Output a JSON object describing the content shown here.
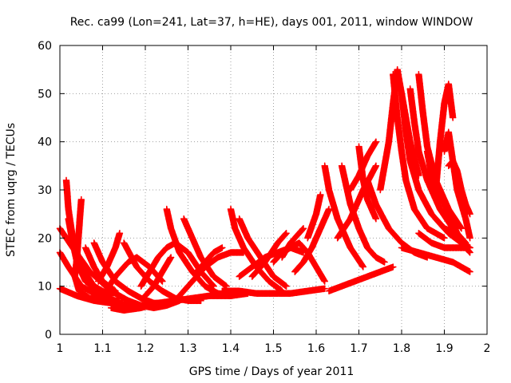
{
  "chart_data": {
    "type": "scatter",
    "title": "Rec. ca99 (Lon=241, Lat=37, h=HE), days 001, 2011, window WINDOW",
    "xlabel": "GPS time / Days of year 2011",
    "ylabel": "STEC from uqrg / TECUs",
    "xlim": [
      1,
      2
    ],
    "ylim": [
      0,
      60
    ],
    "xticks": [
      "1",
      "1.1",
      "1.2",
      "1.3",
      "1.4",
      "1.5",
      "1.6",
      "1.7",
      "1.8",
      "1.9",
      "2"
    ],
    "yticks": [
      "0",
      "10",
      "20",
      "30",
      "40",
      "50",
      "60"
    ],
    "grid": true,
    "marker": "plus",
    "color": "#ff0000",
    "series": [
      {
        "x": [
          1.0,
          1.03,
          1.07,
          1.12,
          1.16
        ],
        "y": [
          22,
          18,
          13,
          9,
          7
        ]
      },
      {
        "x": [
          1.0,
          1.02,
          1.05,
          1.09,
          1.13
        ],
        "y": [
          17,
          14,
          10,
          8,
          7
        ]
      },
      {
        "x": [
          1.0,
          1.04,
          1.08,
          1.12,
          1.17,
          1.21,
          1.25
        ],
        "y": [
          9.5,
          8,
          7,
          6.5,
          6,
          6,
          6.5
        ]
      },
      {
        "x": [
          1.015,
          1.02,
          1.03,
          1.05,
          1.08,
          1.12
        ],
        "y": [
          32,
          26,
          20,
          14,
          10,
          8
        ]
      },
      {
        "x": [
          1.05,
          1.045,
          1.04,
          1.035,
          1.045,
          1.07,
          1.1,
          1.14
        ],
        "y": [
          28,
          22,
          16,
          12,
          9,
          7.5,
          7,
          7
        ]
      },
      {
        "x": [
          1.02,
          1.03,
          1.04,
          1.06,
          1.09,
          1.12
        ],
        "y": [
          24,
          19,
          15,
          11,
          9,
          7.5
        ]
      },
      {
        "x": [
          1.08,
          1.1,
          1.13,
          1.16,
          1.19,
          1.22,
          1.25
        ],
        "y": [
          19,
          15,
          11,
          9,
          7.5,
          6.5,
          6.5
        ]
      },
      {
        "x": [
          1.06,
          1.08,
          1.1,
          1.13
        ],
        "y": [
          18,
          14,
          11,
          9
        ]
      },
      {
        "x": [
          1.1,
          1.13,
          1.16,
          1.18,
          1.21,
          1.24
        ],
        "y": [
          8,
          12,
          15,
          16,
          14,
          11
        ]
      },
      {
        "x": [
          1.09,
          1.11,
          1.13,
          1.14
        ],
        "y": [
          11,
          14,
          18,
          21
        ]
      },
      {
        "x": [
          1.15,
          1.18,
          1.21,
          1.24,
          1.27,
          1.3,
          1.33
        ],
        "y": [
          19,
          14,
          11,
          9,
          7.5,
          7,
          7
        ]
      },
      {
        "x": [
          1.12,
          1.15,
          1.19,
          1.23
        ],
        "y": [
          5.5,
          5,
          5.5,
          6.5
        ]
      },
      {
        "x": [
          1.16,
          1.19,
          1.22,
          1.25,
          1.28
        ],
        "y": [
          7,
          6,
          5.5,
          6,
          7
        ]
      },
      {
        "x": [
          1.19,
          1.21,
          1.23,
          1.25,
          1.27,
          1.3,
          1.33,
          1.36
        ],
        "y": [
          10,
          13,
          16,
          18,
          19,
          17,
          13,
          10
        ]
      },
      {
        "x": [
          1.2,
          1.22,
          1.24,
          1.26
        ],
        "y": [
          8,
          10,
          13,
          16
        ]
      },
      {
        "x": [
          1.25,
          1.26,
          1.28,
          1.31,
          1.34,
          1.37,
          1.4
        ],
        "y": [
          26,
          22,
          17,
          13,
          10,
          8.5,
          8
        ]
      },
      {
        "x": [
          1.29,
          1.31,
          1.33,
          1.36,
          1.39
        ],
        "y": [
          24,
          20,
          16,
          12,
          10
        ]
      },
      {
        "x": [
          1.23,
          1.27,
          1.31,
          1.35,
          1.4,
          1.44
        ],
        "y": [
          6.5,
          7,
          7.5,
          8,
          8,
          8.5
        ]
      },
      {
        "x": [
          1.28,
          1.31,
          1.34,
          1.37,
          1.4,
          1.43
        ],
        "y": [
          8,
          11,
          14,
          16,
          17,
          17
        ]
      },
      {
        "x": [
          1.32,
          1.34,
          1.36,
          1.38
        ],
        "y": [
          13,
          15,
          17,
          18
        ]
      },
      {
        "x": [
          1.4,
          1.41,
          1.43,
          1.46,
          1.49,
          1.52
        ],
        "y": [
          26,
          22,
          18,
          14,
          11,
          9
        ]
      },
      {
        "x": [
          1.42,
          1.44,
          1.47,
          1.5,
          1.53
        ],
        "y": [
          24,
          20,
          16,
          12,
          10
        ]
      },
      {
        "x": [
          1.45,
          1.48,
          1.51,
          1.53
        ],
        "y": [
          12,
          15,
          19,
          21
        ]
      },
      {
        "x": [
          1.38,
          1.42,
          1.46,
          1.5,
          1.54,
          1.58,
          1.62
        ],
        "y": [
          9,
          9,
          8.5,
          8.5,
          8.5,
          9,
          9.5
        ]
      },
      {
        "x": [
          1.42,
          1.45,
          1.48,
          1.51,
          1.54,
          1.57
        ],
        "y": [
          12,
          14,
          16,
          17,
          18,
          17
        ]
      },
      {
        "x": [
          1.5,
          1.52,
          1.54,
          1.56,
          1.58,
          1.6,
          1.62
        ],
        "y": [
          15,
          17,
          18,
          19,
          17,
          14,
          11
        ]
      },
      {
        "x": [
          1.52,
          1.54,
          1.56,
          1.57
        ],
        "y": [
          16,
          19,
          21,
          22
        ]
      },
      {
        "x": [
          1.55,
          1.57,
          1.59,
          1.61,
          1.63
        ],
        "y": [
          13,
          15,
          18,
          22,
          26
        ]
      },
      {
        "x": [
          1.58,
          1.6,
          1.61
        ],
        "y": [
          20,
          25,
          29
        ]
      },
      {
        "x": [
          1.62,
          1.63,
          1.65,
          1.68,
          1.71
        ],
        "y": [
          35,
          30,
          24,
          18,
          14
        ]
      },
      {
        "x": [
          1.63,
          1.66,
          1.69,
          1.72,
          1.75,
          1.78
        ],
        "y": [
          9,
          10,
          11,
          12,
          13,
          14
        ]
      },
      {
        "x": [
          1.65,
          1.68,
          1.71,
          1.74
        ],
        "y": [
          20,
          24,
          30,
          35
        ]
      },
      {
        "x": [
          1.66,
          1.67,
          1.68,
          1.7,
          1.72,
          1.74,
          1.76
        ],
        "y": [
          35,
          31,
          27,
          22,
          18,
          16,
          15
        ]
      },
      {
        "x": [
          1.68,
          1.7,
          1.72,
          1.74
        ],
        "y": [
          30,
          33,
          37,
          40
        ]
      },
      {
        "x": [
          1.7,
          1.71,
          1.72,
          1.74
        ],
        "y": [
          39,
          32,
          28,
          24
        ]
      },
      {
        "x": [
          1.72,
          1.74,
          1.77,
          1.8,
          1.83,
          1.86
        ],
        "y": [
          32,
          27,
          22,
          19,
          17,
          16
        ]
      },
      {
        "x": [
          1.75,
          1.77,
          1.78,
          1.79,
          1.8,
          1.82,
          1.84
        ],
        "y": [
          30,
          40,
          48,
          55,
          50,
          40,
          33
        ]
      },
      {
        "x": [
          1.78,
          1.79,
          1.8,
          1.81,
          1.83,
          1.86,
          1.9
        ],
        "y": [
          54,
          45,
          38,
          32,
          26,
          22,
          20
        ]
      },
      {
        "x": [
          1.8,
          1.81,
          1.82,
          1.84,
          1.87,
          1.9,
          1.93
        ],
        "y": [
          50,
          42,
          36,
          30,
          25,
          22,
          21
        ]
      },
      {
        "x": [
          1.82,
          1.83,
          1.84,
          1.86,
          1.89,
          1.92,
          1.95
        ],
        "y": [
          51,
          44,
          38,
          32,
          26,
          22,
          19
        ]
      },
      {
        "x": [
          1.84,
          1.85,
          1.86,
          1.88,
          1.91,
          1.94
        ],
        "y": [
          54,
          46,
          39,
          32,
          26,
          22
        ]
      },
      {
        "x": [
          1.86,
          1.87,
          1.88,
          1.9,
          1.92,
          1.94,
          1.96
        ],
        "y": [
          38,
          33,
          30,
          27,
          23,
          19,
          17
        ]
      },
      {
        "x": [
          1.88,
          1.89,
          1.9,
          1.91,
          1.92
        ],
        "y": [
          30,
          40,
          48,
          52,
          45
        ]
      },
      {
        "x": [
          1.9,
          1.91,
          1.92,
          1.93,
          1.95,
          1.96
        ],
        "y": [
          38,
          42,
          36,
          30,
          24,
          20
        ]
      },
      {
        "x": [
          1.91,
          1.92,
          1.93,
          1.94,
          1.95,
          1.96
        ],
        "y": [
          35,
          36,
          34,
          30,
          27,
          25
        ]
      },
      {
        "x": [
          1.8,
          1.84,
          1.88,
          1.92,
          1.96
        ],
        "y": [
          18,
          17,
          16,
          15,
          13
        ]
      },
      {
        "x": [
          1.84,
          1.87,
          1.9,
          1.93,
          1.96
        ],
        "y": [
          21,
          19,
          18,
          18,
          18
        ]
      },
      {
        "x": [
          1.88,
          1.91,
          1.94,
          1.96
        ],
        "y": [
          24,
          21,
          19,
          18
        ]
      }
    ]
  }
}
